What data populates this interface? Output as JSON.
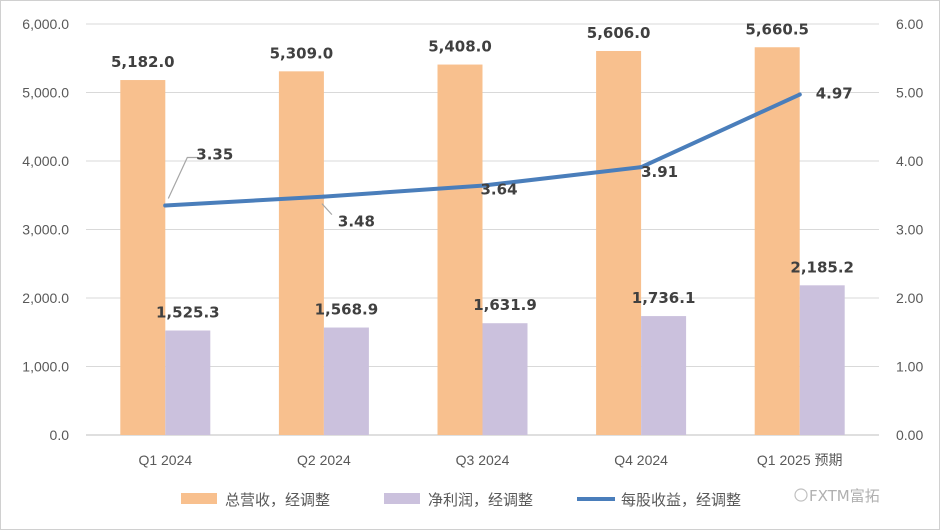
{
  "chart_data": {
    "type": "bar",
    "categories": [
      "Q1 2024",
      "Q2 2024",
      "Q3 2024",
      "Q4 2024",
      "Q1 2025 预期"
    ],
    "series": [
      {
        "name": "总营收，经调整",
        "kind": "bar",
        "color": "#F8C08E",
        "axis": "left",
        "values": [
          5182.0,
          5309.0,
          5408.0,
          5606.0,
          5660.5
        ],
        "labels": [
          "5,182.0",
          "5,309.0",
          "5,408.0",
          "5,606.0",
          "5,660.5"
        ]
      },
      {
        "name": "净利润，经调整",
        "kind": "bar",
        "color": "#CBC1DD",
        "axis": "left",
        "values": [
          1525.3,
          1568.9,
          1631.9,
          1736.1,
          2185.2
        ],
        "labels": [
          "1,525.3",
          "1,568.9",
          "1,631.9",
          "1,736.1",
          "2,185.2"
        ]
      },
      {
        "name": "每股收益，经调整",
        "kind": "line",
        "color": "#4A7EBB",
        "axis": "right",
        "values": [
          3.35,
          3.48,
          3.64,
          3.91,
          4.97
        ],
        "labels": [
          "3.35",
          "3.48",
          "3.64",
          "3.91",
          "4.97"
        ]
      }
    ],
    "y_left": {
      "ylim": [
        0,
        6000
      ],
      "ticks": [
        "0.0",
        "1,000.0",
        "2,000.0",
        "3,000.0",
        "4,000.0",
        "5,000.0",
        "6,000.0"
      ]
    },
    "y_right": {
      "ylim": [
        0,
        6
      ],
      "ticks": [
        "0.00",
        "1.00",
        "2.00",
        "3.00",
        "4.00",
        "5.00",
        "6.00"
      ]
    },
    "grid": true,
    "legend": "bottom"
  },
  "watermark": "FXTM富拓"
}
